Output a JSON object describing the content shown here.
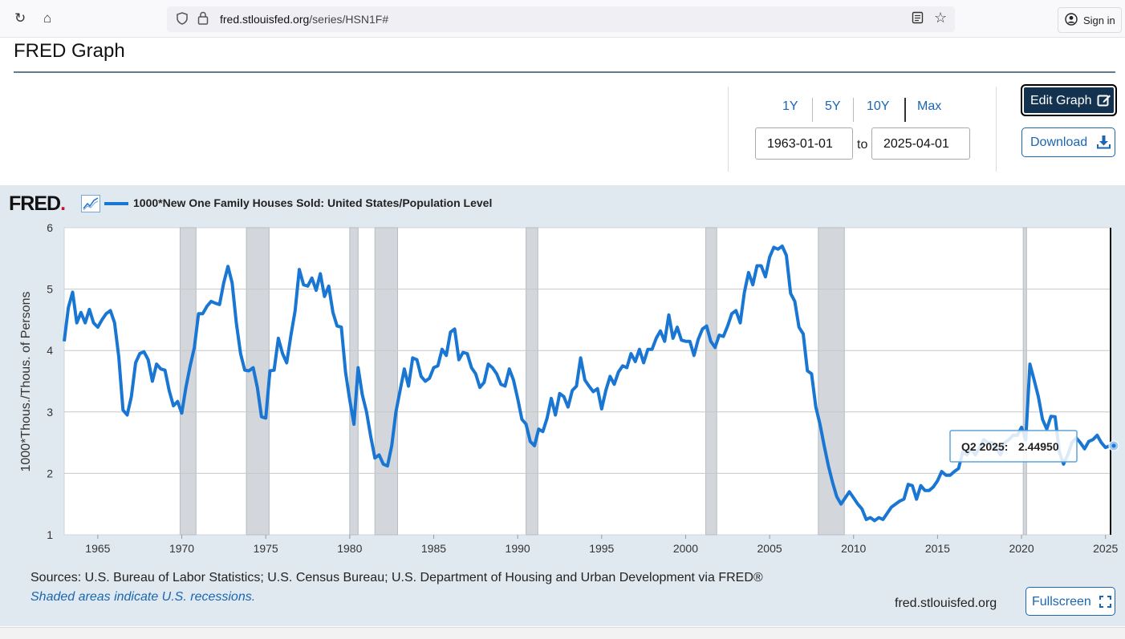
{
  "browser": {
    "reload_icon": "reload-icon",
    "home_icon": "home-icon",
    "url_host": "fred.stlouisfed.org",
    "url_path": "/series/HSN1F#",
    "sign_in_label": "Sign in"
  },
  "page": {
    "title": "FRED Graph"
  },
  "controls": {
    "ranges": [
      "1Y",
      "5Y",
      "10Y",
      "Max"
    ],
    "start_date": "1963-01-01",
    "to_label": "to",
    "end_date": "2025-04-01",
    "edit_label": "Edit Graph",
    "download_label": "Download"
  },
  "chart_header": {
    "logo": "FRED",
    "series_label": "1000*New One Family Houses Sold: United States/Population Level"
  },
  "tooltip": {
    "label": "Q2 2025:",
    "value": "2.44950"
  },
  "footer": {
    "sources": "Sources: U.S. Bureau of Labor Statistics; U.S. Census Bureau; U.S. Department of Housing and Urban Development via FRED®",
    "recession_note": "Shaded areas indicate U.S. recessions.",
    "site": "fred.stlouisfed.org",
    "fullscreen_label": "Fullscreen"
  },
  "colors": {
    "series": "#1976d2",
    "panel": "#e1e9f0",
    "recession": "#d3d7db"
  },
  "chart_data": {
    "type": "line",
    "title": "1000*New One Family Houses Sold: United States/Population Level",
    "xlabel": "",
    "ylabel": "1000*Thous./Thous. of Persons",
    "xlim": [
      1963.0,
      2025.3
    ],
    "ylim": [
      1,
      6
    ],
    "yticks": [
      1,
      2,
      3,
      4,
      5,
      6
    ],
    "xticks": [
      1965,
      1970,
      1975,
      1980,
      1985,
      1990,
      1995,
      2000,
      2005,
      2010,
      2015,
      2020,
      2025
    ],
    "grid": true,
    "recessions": [
      [
        1969.9,
        1970.85
      ],
      [
        1973.85,
        1975.2
      ],
      [
        1980.0,
        1980.5
      ],
      [
        1981.5,
        1982.85
      ],
      [
        1990.5,
        1991.2
      ],
      [
        2001.2,
        2001.85
      ],
      [
        2007.9,
        2009.45
      ],
      [
        2020.1,
        2020.3
      ]
    ],
    "series": [
      {
        "name": "1000*New One Family Houses Sold: United States/Population Level",
        "points": [
          [
            1963.0,
            4.15
          ],
          [
            1963.25,
            4.7
          ],
          [
            1963.5,
            4.95
          ],
          [
            1963.75,
            4.45
          ],
          [
            1964.0,
            4.62
          ],
          [
            1964.25,
            4.45
          ],
          [
            1964.5,
            4.67
          ],
          [
            1964.75,
            4.45
          ],
          [
            1965.0,
            4.38
          ],
          [
            1965.25,
            4.5
          ],
          [
            1965.5,
            4.6
          ],
          [
            1965.75,
            4.65
          ],
          [
            1966.0,
            4.45
          ],
          [
            1966.25,
            3.9
          ],
          [
            1966.5,
            3.03
          ],
          [
            1966.75,
            2.95
          ],
          [
            1967.0,
            3.25
          ],
          [
            1967.25,
            3.8
          ],
          [
            1967.5,
            3.95
          ],
          [
            1967.75,
            3.98
          ],
          [
            1968.0,
            3.85
          ],
          [
            1968.25,
            3.5
          ],
          [
            1968.5,
            3.78
          ],
          [
            1968.75,
            3.7
          ],
          [
            1969.0,
            3.68
          ],
          [
            1969.25,
            3.35
          ],
          [
            1969.5,
            3.1
          ],
          [
            1969.75,
            3.17
          ],
          [
            1970.0,
            2.98
          ],
          [
            1970.25,
            3.4
          ],
          [
            1970.5,
            3.75
          ],
          [
            1970.75,
            4.05
          ],
          [
            1971.0,
            4.6
          ],
          [
            1971.25,
            4.6
          ],
          [
            1971.5,
            4.72
          ],
          [
            1971.75,
            4.8
          ],
          [
            1972.0,
            4.77
          ],
          [
            1972.25,
            4.75
          ],
          [
            1972.5,
            5.1
          ],
          [
            1972.75,
            5.37
          ],
          [
            1973.0,
            5.1
          ],
          [
            1973.25,
            4.45
          ],
          [
            1973.5,
            3.95
          ],
          [
            1973.75,
            3.68
          ],
          [
            1974.0,
            3.67
          ],
          [
            1974.25,
            3.72
          ],
          [
            1974.5,
            3.4
          ],
          [
            1974.75,
            2.92
          ],
          [
            1975.0,
            2.9
          ],
          [
            1975.25,
            3.67
          ],
          [
            1975.5,
            3.68
          ],
          [
            1975.75,
            4.2
          ],
          [
            1976.0,
            3.95
          ],
          [
            1976.25,
            3.8
          ],
          [
            1976.5,
            4.25
          ],
          [
            1976.75,
            4.65
          ],
          [
            1977.0,
            5.32
          ],
          [
            1977.25,
            5.07
          ],
          [
            1977.5,
            5.05
          ],
          [
            1977.75,
            5.18
          ],
          [
            1978.0,
            4.98
          ],
          [
            1978.25,
            5.25
          ],
          [
            1978.5,
            4.88
          ],
          [
            1978.75,
            5.05
          ],
          [
            1979.0,
            4.62
          ],
          [
            1979.25,
            4.4
          ],
          [
            1979.5,
            4.38
          ],
          [
            1979.75,
            3.65
          ],
          [
            1980.0,
            3.2
          ],
          [
            1980.25,
            2.8
          ],
          [
            1980.5,
            3.72
          ],
          [
            1980.75,
            3.28
          ],
          [
            1981.0,
            3.0
          ],
          [
            1981.25,
            2.6
          ],
          [
            1981.5,
            2.25
          ],
          [
            1981.75,
            2.3
          ],
          [
            1982.0,
            2.15
          ],
          [
            1982.25,
            2.12
          ],
          [
            1982.5,
            2.45
          ],
          [
            1982.75,
            3.0
          ],
          [
            1983.0,
            3.35
          ],
          [
            1983.25,
            3.7
          ],
          [
            1983.5,
            3.42
          ],
          [
            1983.75,
            3.88
          ],
          [
            1984.0,
            3.85
          ],
          [
            1984.25,
            3.58
          ],
          [
            1984.5,
            3.5
          ],
          [
            1984.75,
            3.55
          ],
          [
            1985.0,
            3.72
          ],
          [
            1985.25,
            3.75
          ],
          [
            1985.5,
            4.02
          ],
          [
            1985.75,
            3.92
          ],
          [
            1986.0,
            4.3
          ],
          [
            1986.25,
            4.35
          ],
          [
            1986.5,
            3.85
          ],
          [
            1986.75,
            3.97
          ],
          [
            1987.0,
            3.95
          ],
          [
            1987.25,
            3.72
          ],
          [
            1987.5,
            3.62
          ],
          [
            1987.75,
            3.4
          ],
          [
            1988.0,
            3.48
          ],
          [
            1988.25,
            3.78
          ],
          [
            1988.5,
            3.72
          ],
          [
            1988.75,
            3.62
          ],
          [
            1989.0,
            3.45
          ],
          [
            1989.25,
            3.42
          ],
          [
            1989.5,
            3.7
          ],
          [
            1989.75,
            3.52
          ],
          [
            1990.0,
            3.22
          ],
          [
            1990.25,
            2.88
          ],
          [
            1990.5,
            2.8
          ],
          [
            1990.75,
            2.52
          ],
          [
            1991.0,
            2.45
          ],
          [
            1991.25,
            2.72
          ],
          [
            1991.5,
            2.68
          ],
          [
            1991.75,
            2.9
          ],
          [
            1992.0,
            3.22
          ],
          [
            1992.25,
            2.95
          ],
          [
            1992.5,
            3.3
          ],
          [
            1992.75,
            3.25
          ],
          [
            1993.0,
            3.08
          ],
          [
            1993.25,
            3.35
          ],
          [
            1993.5,
            3.42
          ],
          [
            1993.75,
            3.88
          ],
          [
            1994.0,
            3.52
          ],
          [
            1994.25,
            3.42
          ],
          [
            1994.5,
            3.33
          ],
          [
            1994.75,
            3.38
          ],
          [
            1995.0,
            3.05
          ],
          [
            1995.25,
            3.35
          ],
          [
            1995.5,
            3.58
          ],
          [
            1995.75,
            3.45
          ],
          [
            1996.0,
            3.65
          ],
          [
            1996.25,
            3.75
          ],
          [
            1996.5,
            3.72
          ],
          [
            1996.75,
            3.95
          ],
          [
            1997.0,
            3.82
          ],
          [
            1997.25,
            4.02
          ],
          [
            1997.5,
            3.8
          ],
          [
            1997.75,
            4.02
          ],
          [
            1998.0,
            4.02
          ],
          [
            1998.25,
            4.2
          ],
          [
            1998.5,
            4.32
          ],
          [
            1998.75,
            4.15
          ],
          [
            1999.0,
            4.58
          ],
          [
            1999.25,
            4.2
          ],
          [
            1999.5,
            4.38
          ],
          [
            1999.75,
            4.17
          ],
          [
            2000.0,
            4.15
          ],
          [
            2000.25,
            4.15
          ],
          [
            2000.5,
            3.92
          ],
          [
            2000.75,
            4.18
          ],
          [
            2001.0,
            4.35
          ],
          [
            2001.25,
            4.4
          ],
          [
            2001.5,
            4.15
          ],
          [
            2001.75,
            4.05
          ],
          [
            2002.0,
            4.25
          ],
          [
            2002.25,
            4.23
          ],
          [
            2002.5,
            4.4
          ],
          [
            2002.75,
            4.6
          ],
          [
            2003.0,
            4.65
          ],
          [
            2003.25,
            4.45
          ],
          [
            2003.5,
            4.95
          ],
          [
            2003.75,
            5.27
          ],
          [
            2004.0,
            5.07
          ],
          [
            2004.25,
            5.38
          ],
          [
            2004.5,
            5.38
          ],
          [
            2004.75,
            5.2
          ],
          [
            2005.0,
            5.52
          ],
          [
            2005.25,
            5.68
          ],
          [
            2005.5,
            5.65
          ],
          [
            2005.75,
            5.7
          ],
          [
            2006.0,
            5.55
          ],
          [
            2006.25,
            4.93
          ],
          [
            2006.5,
            4.8
          ],
          [
            2006.75,
            4.38
          ],
          [
            2007.0,
            4.27
          ],
          [
            2007.25,
            3.67
          ],
          [
            2007.5,
            3.62
          ],
          [
            2007.75,
            3.08
          ],
          [
            2008.0,
            2.8
          ],
          [
            2008.25,
            2.45
          ],
          [
            2008.5,
            2.12
          ],
          [
            2008.75,
            1.85
          ],
          [
            2009.0,
            1.62
          ],
          [
            2009.25,
            1.5
          ],
          [
            2009.5,
            1.6
          ],
          [
            2009.75,
            1.7
          ],
          [
            2010.0,
            1.6
          ],
          [
            2010.25,
            1.5
          ],
          [
            2010.5,
            1.42
          ],
          [
            2010.75,
            1.25
          ],
          [
            2011.0,
            1.28
          ],
          [
            2011.25,
            1.23
          ],
          [
            2011.5,
            1.28
          ],
          [
            2011.75,
            1.25
          ],
          [
            2012.0,
            1.35
          ],
          [
            2012.25,
            1.45
          ],
          [
            2012.5,
            1.5
          ],
          [
            2012.75,
            1.55
          ],
          [
            2013.0,
            1.58
          ],
          [
            2013.25,
            1.82
          ],
          [
            2013.5,
            1.8
          ],
          [
            2013.75,
            1.58
          ],
          [
            2014.0,
            1.8
          ],
          [
            2014.25,
            1.72
          ],
          [
            2014.5,
            1.72
          ],
          [
            2014.75,
            1.78
          ],
          [
            2015.0,
            1.88
          ],
          [
            2015.25,
            2.03
          ],
          [
            2015.5,
            1.97
          ],
          [
            2015.75,
            1.97
          ],
          [
            2016.0,
            2.03
          ],
          [
            2016.25,
            2.08
          ],
          [
            2016.5,
            2.35
          ],
          [
            2016.75,
            2.3
          ],
          [
            2017.0,
            2.4
          ],
          [
            2017.25,
            2.3
          ],
          [
            2017.5,
            2.42
          ],
          [
            2017.75,
            2.55
          ],
          [
            2018.0,
            2.5
          ],
          [
            2018.25,
            2.5
          ],
          [
            2018.5,
            2.4
          ],
          [
            2018.75,
            2.3
          ],
          [
            2019.0,
            2.5
          ],
          [
            2019.25,
            2.55
          ],
          [
            2019.5,
            2.62
          ],
          [
            2019.75,
            2.62
          ],
          [
            2020.0,
            2.75
          ],
          [
            2020.25,
            2.55
          ],
          [
            2020.5,
            3.78
          ],
          [
            2020.75,
            3.52
          ],
          [
            2021.0,
            3.25
          ],
          [
            2021.25,
            2.88
          ],
          [
            2021.5,
            2.72
          ],
          [
            2021.75,
            2.93
          ],
          [
            2022.0,
            2.92
          ],
          [
            2022.25,
            2.35
          ],
          [
            2022.5,
            2.15
          ],
          [
            2022.75,
            2.3
          ],
          [
            2023.0,
            2.5
          ],
          [
            2023.25,
            2.58
          ],
          [
            2023.5,
            2.5
          ],
          [
            2023.75,
            2.4
          ],
          [
            2024.0,
            2.52
          ],
          [
            2024.25,
            2.55
          ],
          [
            2024.5,
            2.62
          ],
          [
            2024.75,
            2.5
          ],
          [
            2025.0,
            2.42
          ],
          [
            2025.25,
            2.4495
          ]
        ]
      }
    ]
  }
}
